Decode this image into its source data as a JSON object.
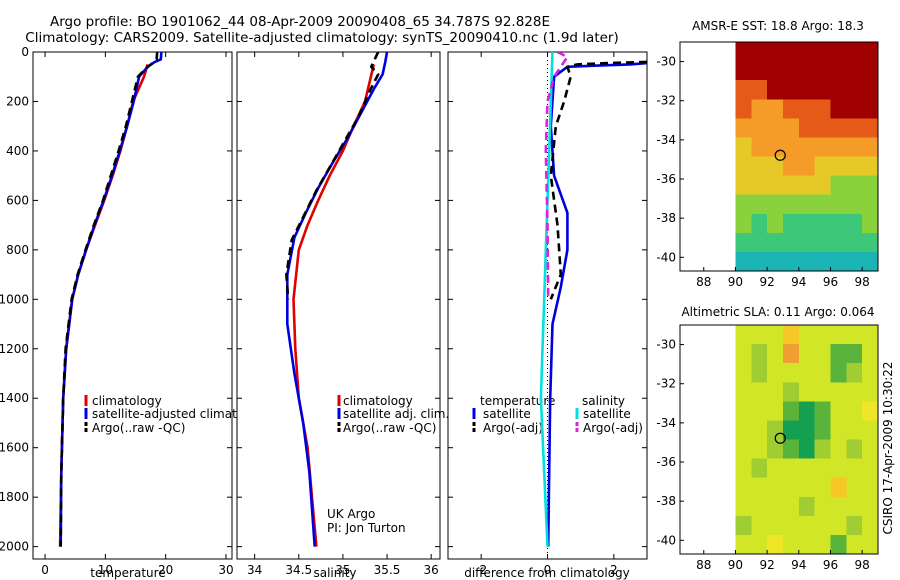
{
  "header": {
    "line1": "Argo profile: BO 1901062_44 08-Apr-2009 20090408_65 34.787S 92.828E",
    "line2": "Climatology: CARS2009. Satellite-adjusted climatology: synTS_20090410.nc (1.9d later)"
  },
  "colors": {
    "red": "#e00000",
    "blue": "#0000dd",
    "black": "#000000",
    "cyan": "#00e0e0",
    "magenta": "#e020e0"
  },
  "chart_data": [
    {
      "type": "line",
      "name": "temperature-profile",
      "xlabel": "temperature",
      "xlim": [
        -2,
        31
      ],
      "ylim": [
        2050,
        0
      ],
      "xticks": [
        "0",
        "10",
        "20",
        "30"
      ],
      "xtick_values": [
        0,
        10,
        20,
        30
      ],
      "yticks": [
        "0",
        "200",
        "400",
        "600",
        "800",
        "1000",
        "1200",
        "1400",
        "1600",
        "1800",
        "2000"
      ],
      "ytick_values": [
        0,
        200,
        400,
        600,
        800,
        1000,
        1200,
        1400,
        1600,
        1800,
        2000
      ],
      "legend": [
        "climatology",
        "satellite-adjusted climatology",
        "Argo(..raw -QC)"
      ],
      "legend_placement": "lower-right",
      "series": [
        {
          "name": "climatology",
          "color": "red",
          "dash": false,
          "x": [
            17.0,
            16.4,
            15.5,
            14.6,
            13.6,
            12.5,
            11.2,
            9.8,
            8.3,
            6.8,
            5.5,
            4.5,
            3.5,
            3.0,
            2.7,
            2.5
          ],
          "y": [
            50,
            100,
            150,
            200,
            300,
            400,
            500,
            600,
            700,
            800,
            900,
            1000,
            1200,
            1400,
            1700,
            2000
          ]
        },
        {
          "name": "satellite-adjusted climatology",
          "color": "blue",
          "dash": false,
          "x": [
            19.3,
            19.2,
            18.2,
            17.0,
            15.6,
            14.7,
            13.6,
            12.4,
            11.1,
            9.7,
            8.2,
            6.8,
            5.5,
            4.5,
            3.5,
            3.0,
            2.7,
            2.6
          ],
          "y": [
            0,
            30,
            40,
            60,
            100,
            200,
            300,
            400,
            500,
            600,
            700,
            800,
            900,
            1000,
            1200,
            1400,
            1700,
            2000
          ]
        },
        {
          "name": "Argo(..raw -QC)",
          "color": "black",
          "dash": true,
          "x": [
            18.6,
            18.5,
            17.8,
            16.8,
            15.4,
            14.4,
            13.4,
            12.2,
            10.9,
            9.6,
            8.1,
            6.7,
            5.4,
            4.4,
            3.4,
            3.0,
            2.7,
            2.6
          ],
          "y": [
            0,
            30,
            45,
            65,
            100,
            200,
            300,
            400,
            500,
            600,
            700,
            800,
            900,
            1000,
            1200,
            1400,
            1700,
            2000
          ]
        }
      ]
    },
    {
      "type": "line",
      "name": "salinity-profile",
      "xlabel": "salinity",
      "xlim": [
        33.8,
        36.1
      ],
      "ylim": [
        2050,
        0
      ],
      "xticks": [
        "34",
        "34.5",
        "35",
        "35.5",
        "36"
      ],
      "xtick_values": [
        34,
        34.5,
        35,
        35.5,
        36
      ],
      "legend": [
        "climatology",
        "satellite adj. clim.",
        "Argo(..raw -QC)"
      ],
      "legend_placement": "lower-right",
      "annotation": [
        "UK Argo",
        "PI: Jon Turton"
      ],
      "series": [
        {
          "name": "climatology",
          "color": "red",
          "dash": false,
          "x": [
            35.35,
            35.25,
            35.12,
            35.0,
            34.85,
            34.72,
            34.6,
            34.5,
            34.44,
            34.46,
            34.5,
            34.6,
            34.65,
            34.7
          ],
          "y": [
            50,
            200,
            300,
            400,
            500,
            600,
            700,
            800,
            1000,
            1200,
            1400,
            1600,
            1800,
            2000
          ]
        },
        {
          "name": "satellite adj. clim.",
          "color": "blue",
          "dash": false,
          "x": [
            35.5,
            35.48,
            35.45,
            35.35,
            35.2,
            35.05,
            34.88,
            34.72,
            34.58,
            34.45,
            34.37,
            34.37,
            34.45,
            34.55,
            34.62,
            34.68
          ],
          "y": [
            0,
            40,
            90,
            150,
            250,
            350,
            450,
            550,
            650,
            750,
            900,
            1100,
            1300,
            1500,
            1700,
            2000
          ]
        },
        {
          "name": "Argo(..raw -QC)",
          "color": "black",
          "dash": true,
          "x": [
            35.4,
            35.32,
            35.4,
            35.3,
            35.18,
            35.02,
            34.86,
            34.7,
            34.56,
            34.42,
            34.36,
            34.38
          ],
          "y": [
            0,
            60,
            90,
            160,
            260,
            360,
            460,
            560,
            660,
            760,
            900,
            1000
          ]
        }
      ]
    },
    {
      "type": "line",
      "name": "difference-profile",
      "xlabel": "difference from climatology",
      "xlim": [
        -3,
        3
      ],
      "ylim": [
        2050,
        0
      ],
      "xticks": [
        "-2",
        "0",
        "2"
      ],
      "xtick_values": [
        -2,
        0,
        2
      ],
      "legend_temperature_title": "temperature",
      "legend_salinity_title": "salinity",
      "legend_temperature": [
        "satellite",
        "Argo(-adj)"
      ],
      "legend_salinity": [
        "satellite",
        "Argo(-adj)"
      ],
      "legend_placement": "lower",
      "series": [
        {
          "name": "temperature satellite",
          "color": "blue",
          "dash": false,
          "x": [
            3.0,
            2.5,
            1.5,
            0.6,
            0.2,
            0.1,
            0.2,
            0.6,
            0.6,
            0.4,
            0.15,
            0.08,
            0.05,
            0.02
          ],
          "y": [
            45,
            50,
            55,
            60,
            100,
            300,
            500,
            650,
            800,
            950,
            1100,
            1400,
            1700,
            2000
          ]
        },
        {
          "name": "temperature Argo(-adj)",
          "color": "black",
          "dash": true,
          "x": [
            3.0,
            1.8,
            0.9,
            0.6,
            0.7,
            0.5,
            0.25,
            0.1,
            0.3,
            0.4,
            0.1
          ],
          "y": [
            40,
            45,
            50,
            60,
            100,
            200,
            300,
            500,
            700,
            900,
            1000
          ]
        },
        {
          "name": "salinity satellite",
          "color": "cyan",
          "dash": false,
          "x": [
            0.15,
            0.1,
            0.05,
            0.0,
            -0.05,
            -0.1,
            -0.15,
            -0.2,
            -0.1,
            0.0
          ],
          "y": [
            0,
            200,
            400,
            600,
            800,
            1000,
            1200,
            1400,
            1700,
            2000
          ]
        },
        {
          "name": "salinity Argo(-adj)",
          "color": "magenta",
          "dash": true,
          "x": [
            0.3,
            0.6,
            0.4,
            0.2,
            0.1,
            0.0,
            -0.05,
            0.0,
            0.02
          ],
          "y": [
            0,
            20,
            60,
            100,
            150,
            200,
            400,
            700,
            1000
          ]
        }
      ]
    },
    {
      "type": "heatmap",
      "name": "sst-map",
      "title": "AMSR-E SST: 18.8 Argo: 18.3",
      "xlim": [
        86.5,
        99
      ],
      "ylim": [
        -40.7,
        -29
      ],
      "xticks": [
        "88",
        "90",
        "92",
        "94",
        "96",
        "98"
      ],
      "xtick_values": [
        88,
        90,
        92,
        94,
        96,
        98
      ],
      "yticks": [
        "-30",
        "-32",
        "-34",
        "-36",
        "-38",
        "-40"
      ],
      "ytick_values": [
        -30,
        -32,
        -34,
        -36,
        -38,
        -40
      ],
      "data_extent_lon": [
        90,
        99
      ],
      "marker": {
        "lon": 92.828,
        "lat": -34.787
      },
      "colorscale": [
        "#1a55ff",
        "#1ab4b4",
        "#3cc878",
        "#8ad23c",
        "#e6c828",
        "#f59b28",
        "#e65a19",
        "#a00000"
      ],
      "rows_north_to_south": [
        [
          7,
          7,
          7,
          7,
          7,
          7,
          7,
          7,
          7
        ],
        [
          7,
          7,
          7,
          7,
          7,
          7,
          7,
          7,
          7
        ],
        [
          6,
          6,
          7,
          7,
          7,
          7,
          7,
          7,
          7
        ],
        [
          6,
          5,
          5,
          6,
          6,
          6,
          7,
          7,
          7
        ],
        [
          5,
          5,
          5,
          5,
          6,
          6,
          6,
          6,
          6
        ],
        [
          4,
          5,
          5,
          5,
          5,
          5,
          5,
          5,
          5
        ],
        [
          4,
          4,
          4,
          5,
          5,
          4,
          4,
          4,
          4
        ],
        [
          4,
          4,
          4,
          4,
          4,
          4,
          3,
          3,
          3
        ],
        [
          3,
          3,
          3,
          3,
          3,
          3,
          3,
          3,
          3
        ],
        [
          3,
          2,
          3,
          2,
          2,
          2,
          2,
          2,
          3
        ],
        [
          2,
          2,
          2,
          2,
          2,
          2,
          2,
          2,
          2
        ],
        [
          1,
          1,
          1,
          1,
          1,
          1,
          1,
          1,
          1
        ]
      ]
    },
    {
      "type": "heatmap",
      "name": "sla-map",
      "title": "Altimetric SLA: 0.11 Argo: 0.064",
      "xlim": [
        86.5,
        99
      ],
      "ylim": [
        -40.7,
        -29
      ],
      "xticks": [
        "88",
        "90",
        "92",
        "94",
        "96",
        "98"
      ],
      "xtick_values": [
        88,
        90,
        92,
        94,
        96,
        98
      ],
      "yticks": [
        "-30",
        "-32",
        "-34",
        "-36",
        "-38",
        "-40"
      ],
      "ytick_values": [
        -30,
        -32,
        -34,
        -36,
        -38,
        -40
      ],
      "data_extent_lon": [
        90,
        99
      ],
      "marker": {
        "lon": 92.828,
        "lat": -34.787
      },
      "colorscale": [
        "#14a050",
        "#5ab43c",
        "#a0cd32",
        "#d2e628",
        "#f0e628",
        "#f5c828",
        "#f0a032"
      ],
      "rows_north_to_south": [
        [
          3,
          3,
          3,
          5,
          3,
          3,
          3,
          3,
          3
        ],
        [
          3,
          2,
          3,
          6,
          3,
          3,
          1,
          1,
          3
        ],
        [
          3,
          2,
          3,
          3,
          3,
          3,
          1,
          2,
          3
        ],
        [
          3,
          3,
          3,
          2,
          3,
          3,
          3,
          3,
          3
        ],
        [
          3,
          3,
          3,
          1,
          0,
          1,
          3,
          3,
          4
        ],
        [
          3,
          3,
          2,
          0,
          0,
          1,
          3,
          3,
          3
        ],
        [
          3,
          3,
          2,
          1,
          0,
          2,
          3,
          2,
          3
        ],
        [
          3,
          2,
          3,
          3,
          3,
          3,
          3,
          3,
          3
        ],
        [
          3,
          3,
          3,
          3,
          3,
          3,
          5,
          3,
          3
        ],
        [
          3,
          3,
          3,
          3,
          2,
          3,
          3,
          3,
          3
        ],
        [
          2,
          3,
          3,
          3,
          3,
          3,
          3,
          2,
          3
        ],
        [
          3,
          3,
          4,
          3,
          3,
          3,
          1,
          3,
          3
        ]
      ]
    }
  ],
  "side_label": "CSIRO 17-Apr-2009 10:30:22"
}
